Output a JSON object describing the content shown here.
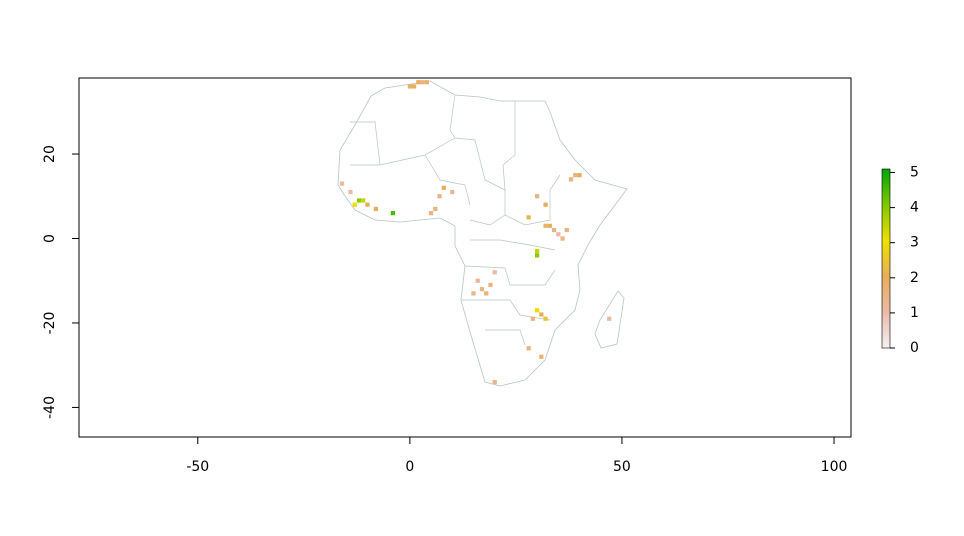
{
  "chart_data": {
    "type": "raster",
    "xlim": [
      -78,
      104
    ],
    "ylim": [
      -47,
      38
    ],
    "xticks": [
      -50,
      0,
      50,
      100
    ],
    "yticks": [
      -40,
      -20,
      0,
      20
    ],
    "zlim": [
      0,
      5.1
    ],
    "zticks": [
      0,
      1,
      2,
      3,
      4,
      5
    ],
    "colors": [
      "#f2f2f2",
      "#eab9a8",
      "#e8ae5a",
      "#eee000",
      "#80c800",
      "#00a600"
    ],
    "cell_size": 1,
    "lon": [
      -12,
      -11,
      -13,
      -10,
      -14,
      -16,
      -8,
      -4,
      0,
      1,
      2,
      3,
      4,
      39,
      40,
      38,
      32,
      33,
      34,
      35,
      36,
      37,
      30,
      30,
      17,
      18,
      15,
      19,
      16,
      20,
      30,
      31,
      29,
      32,
      7,
      8,
      10,
      5,
      6,
      30,
      32,
      28,
      28,
      31,
      20,
      47
    ],
    "lat": [
      9,
      9,
      8,
      8,
      11,
      13,
      7,
      6,
      36,
      36,
      37,
      37,
      37,
      15,
      15,
      14,
      3,
      3,
      2,
      1,
      0,
      2,
      -4,
      -3,
      -12,
      -13,
      -13,
      -11,
      -10,
      -8,
      -17,
      -18,
      -19,
      -19,
      10,
      12,
      11,
      6,
      7,
      10,
      8,
      5,
      -26,
      -28,
      -34,
      -19
    ],
    "values": [
      4,
      3.5,
      3,
      2,
      1,
      1,
      2,
      4.5,
      1.8,
      2,
      2,
      1.5,
      1.8,
      1.5,
      2,
      1.5,
      1.8,
      2,
      1.5,
      1,
      1.5,
      1.6,
      4,
      3.5,
      1.5,
      1.6,
      1.4,
      1.5,
      1.3,
      1,
      3,
      2,
      1.5,
      2.5,
      1.5,
      2,
      1.3,
      1.5,
      1.6,
      1.5,
      2,
      2.2,
      1.5,
      1.7,
      1.5,
      1
    ]
  }
}
